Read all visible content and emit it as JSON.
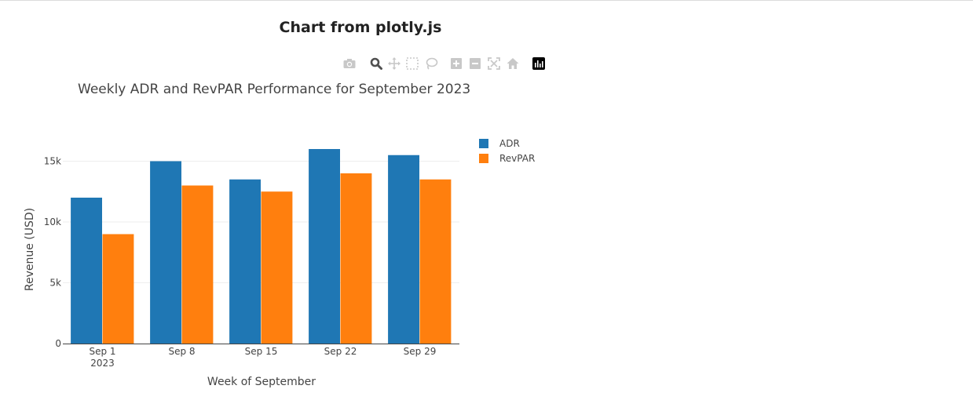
{
  "page": {
    "heading": "Chart from plotly.js"
  },
  "modebar": {
    "buttons": [
      {
        "name": "camera-icon"
      },
      {
        "name": "zoom-icon",
        "active": true
      },
      {
        "name": "pan-icon"
      },
      {
        "name": "box-select-icon"
      },
      {
        "name": "lasso-icon"
      },
      {
        "name": "zoom-in-icon"
      },
      {
        "name": "zoom-out-icon"
      },
      {
        "name": "autoscale-icon"
      },
      {
        "name": "reset-axes-icon"
      },
      {
        "name": "plotly-logo-icon"
      }
    ],
    "colors": {
      "inactive": "#c8c8c8",
      "active": "#505050",
      "logo": "#000000"
    }
  },
  "chart_data": {
    "type": "bar",
    "title": "Weekly ADR and RevPAR Performance for September 2023",
    "xlabel": "Week of September",
    "ylabel": "Revenue (USD)",
    "categories": [
      "Sep 1",
      "Sep 8",
      "Sep 15",
      "Sep 22",
      "Sep 29"
    ],
    "category_sublabels": [
      "2023",
      "",
      "",
      "",
      ""
    ],
    "series": [
      {
        "name": "ADR",
        "values": [
          12000,
          15000,
          13500,
          16000,
          15500
        ],
        "color": "#1f77b4"
      },
      {
        "name": "RevPAR",
        "values": [
          9000,
          13000,
          12500,
          14000,
          13500
        ],
        "color": "#ff7f0e"
      }
    ],
    "ylim": [
      0,
      18000
    ],
    "yticks": [
      0,
      5000,
      10000,
      15000
    ],
    "ytick_labels": [
      "0",
      "5k",
      "10k",
      "15k"
    ],
    "grid": true,
    "legend_position": "top-right"
  }
}
